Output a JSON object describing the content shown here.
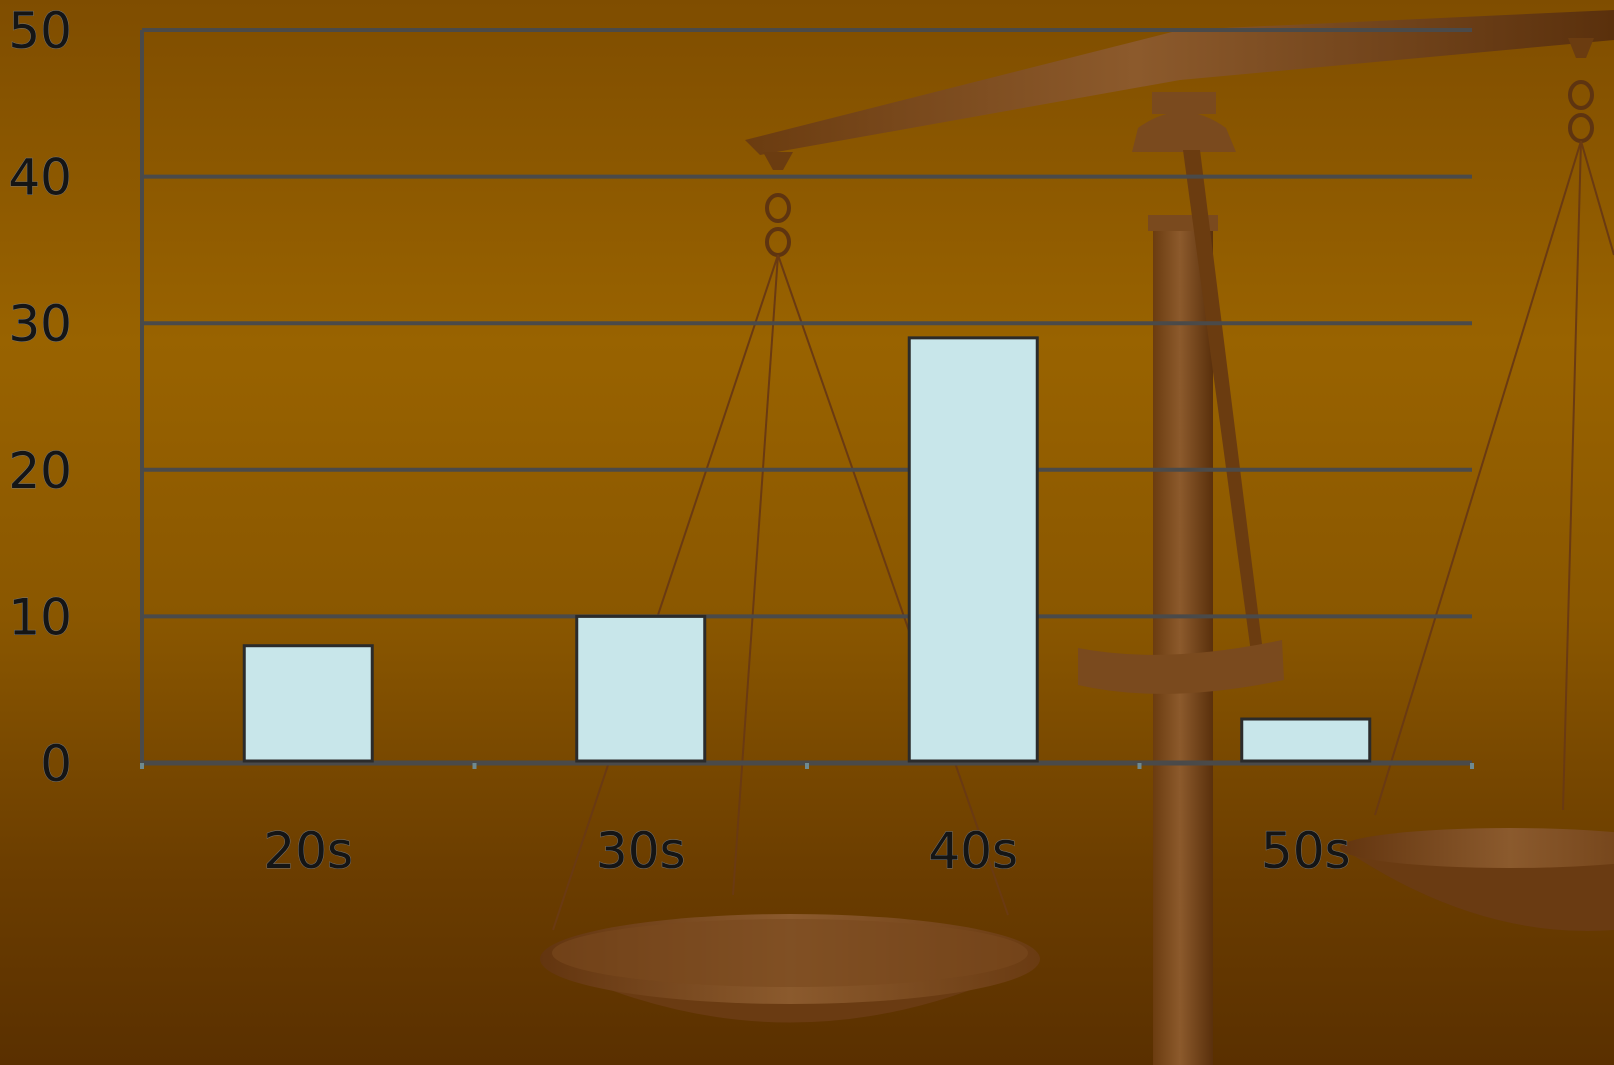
{
  "chart_data": {
    "type": "bar",
    "categories": [
      "20s",
      "30s",
      "40s",
      "50s"
    ],
    "values": [
      8,
      10,
      29,
      3
    ],
    "ylim": [
      0,
      50
    ],
    "yticks": [
      "0",
      "10",
      "20",
      "30",
      "40",
      "50"
    ],
    "grid": true,
    "legend": "none",
    "colors": {
      "bar_fill": "#c8e6ea",
      "bar_stroke": "#2b2b2b",
      "gridline": "#4a4a4a",
      "axis": "#4a4a4a",
      "background_top": "#7f4d00",
      "background_mid": "#996300",
      "background_bottom": "#5a3000"
    },
    "background_art": "balance-scale-illustration"
  }
}
